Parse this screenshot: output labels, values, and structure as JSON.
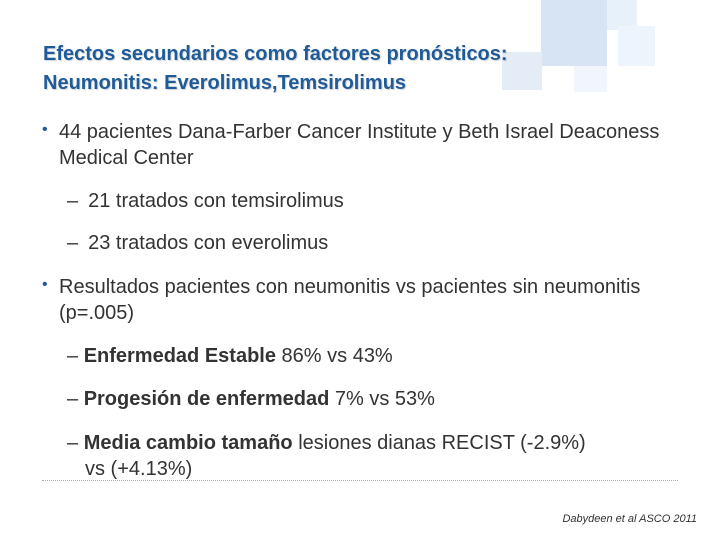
{
  "slide": {
    "title_line1": "Efectos secundarios como factores pronósticos:",
    "title_line2": "Neumonitis: Everolimus,Temsirolimus",
    "bullet_symbol": "•",
    "dash_symbol": "–",
    "bullets": [
      {
        "text": "44 pacientes Dana-Farber Cancer Institute y Beth Israel Deaconess Medical Center",
        "subitems": [
          {
            "text": "21 tratados con temsirolimus"
          },
          {
            "text": "23 tratados con everolimus"
          }
        ]
      },
      {
        "text": "Resultados pacientes con neumonitis vs pacientes sin neumonitis (p=.005)",
        "subitems": [
          {
            "bold": "Enfermedad Estable",
            "text": "86% vs 43%"
          },
          {
            "bold": "Progesión de enfermedad",
            "text": "7% vs  53%"
          },
          {
            "bold": "Media cambio tamaño",
            "text": "lesiones dianas RECIST (-2.9%)",
            "continuation": "vs  (+4.13%)"
          }
        ]
      }
    ],
    "footnote": "Dabydeen et al ASCO 2011",
    "colors": {
      "title": "#1f5b98",
      "body": "#333333",
      "deco": "#d7e4f3"
    }
  }
}
